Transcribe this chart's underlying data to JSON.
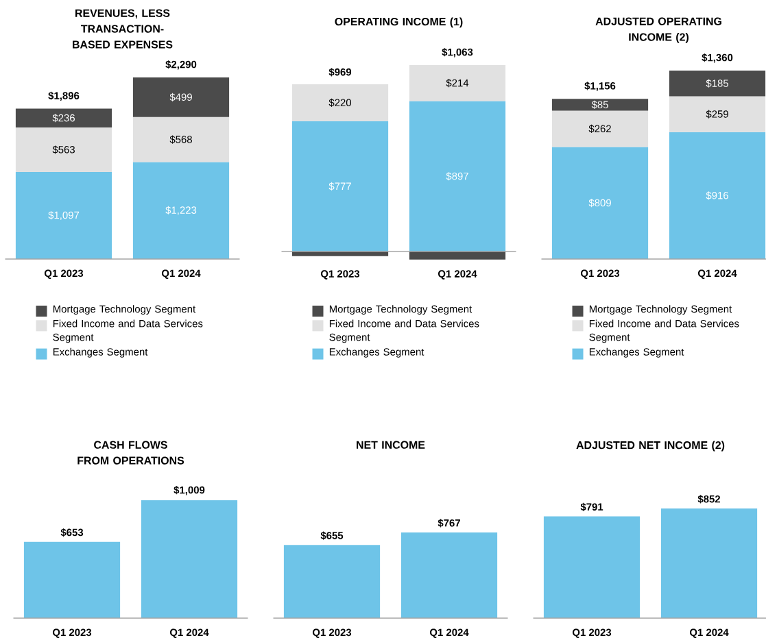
{
  "chart_data": [
    {
      "type": "bar",
      "title": "REVENUES, LESS TRANSACTION- BASED EXPENSES",
      "categories": [
        "Q1 2023",
        "Q1 2024"
      ],
      "stacked": true,
      "legend": "bottom",
      "totals": [
        "$1,896",
        "$2,290"
      ],
      "series": [
        {
          "name": "Exchanges Segment",
          "color": "#6ec4e8",
          "values": [
            1097,
            1223
          ],
          "value_labels": [
            "$1,097",
            "$1,223"
          ]
        },
        {
          "name": "Fixed Income and Data Services Segment",
          "color": "#e1e1e1",
          "values": [
            563,
            568
          ],
          "value_labels": [
            "$563",
            "$568"
          ]
        },
        {
          "name": "Mortgage Technology Segment",
          "color": "#4b4b4b",
          "values": [
            236,
            499
          ],
          "value_labels": [
            "$236",
            "$499"
          ]
        }
      ]
    },
    {
      "type": "bar",
      "title": "OPERATING INCOME (1)",
      "categories": [
        "Q1 2023",
        "Q1 2024"
      ],
      "stacked": true,
      "legend": "bottom",
      "totals": [
        "$969",
        "$1,063"
      ],
      "series": [
        {
          "name": "Exchanges Segment",
          "color": "#6ec4e8",
          "values": [
            777,
            897
          ],
          "value_labels": [
            "$777",
            "$897"
          ]
        },
        {
          "name": "Fixed Income and Data Services Segment",
          "color": "#e1e1e1",
          "values": [
            220,
            214
          ],
          "value_labels": [
            "$220",
            "$214"
          ]
        },
        {
          "name": "Mortgage Technology Segment",
          "color": "#4b4b4b",
          "values": [
            -28,
            -48
          ],
          "value_labels": [
            null,
            null
          ]
        }
      ]
    },
    {
      "type": "bar",
      "title": "ADJUSTED OPERATING INCOME (2)",
      "categories": [
        "Q1 2023",
        "Q1 2024"
      ],
      "stacked": true,
      "legend": "bottom",
      "totals": [
        "$1,156",
        "$1,360"
      ],
      "series": [
        {
          "name": "Exchanges Segment",
          "color": "#6ec4e8",
          "values": [
            809,
            916
          ],
          "value_labels": [
            "$809",
            "$916"
          ]
        },
        {
          "name": "Fixed Income and Data Services Segment",
          "color": "#e1e1e1",
          "values": [
            262,
            259
          ],
          "value_labels": [
            "$262",
            "$259"
          ]
        },
        {
          "name": "Mortgage Technology Segment",
          "color": "#4b4b4b",
          "values": [
            85,
            185
          ],
          "value_labels": [
            "$85",
            "$185"
          ]
        }
      ]
    },
    {
      "type": "bar",
      "title": "CASH FLOWS FROM OPERATIONS",
      "categories": [
        "Q1 2023",
        "Q1 2024"
      ],
      "color": "#6ec4e8",
      "values": [
        653,
        1009
      ],
      "value_labels": [
        "$653",
        "$1,009"
      ]
    },
    {
      "type": "bar",
      "title": "NET INCOME",
      "categories": [
        "Q1 2023",
        "Q1 2024"
      ],
      "color": "#6ec4e8",
      "values": [
        655,
        767
      ],
      "value_labels": [
        "$655",
        "$767"
      ]
    },
    {
      "type": "bar",
      "title": "ADJUSTED NET INCOME (2)",
      "categories": [
        "Q1 2023",
        "Q1 2024"
      ],
      "color": "#6ec4e8",
      "values": [
        791,
        852
      ],
      "value_labels": [
        "$791",
        "$852"
      ]
    }
  ]
}
